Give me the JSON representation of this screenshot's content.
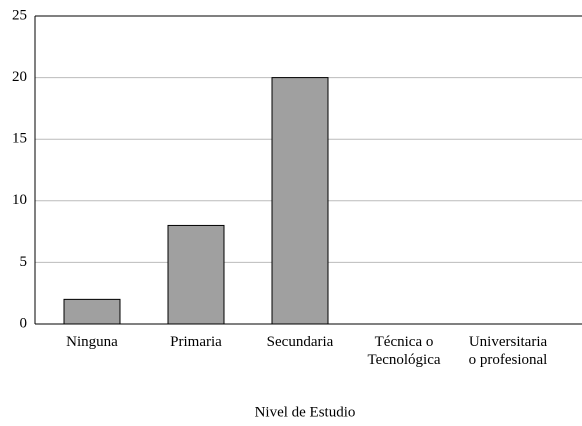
{
  "chart_data": {
    "type": "bar",
    "x_label": "Nivel de Estudio",
    "categories": [
      "Ninguna",
      "Primaria",
      "Secundaria",
      "Técnica o\nTecnológica",
      "Universitaria\no profesional"
    ],
    "values": [
      2,
      8,
      20,
      0,
      0
    ],
    "color": "#a0a0a0",
    "ylim": [
      0,
      25
    ],
    "yticks": [
      0,
      5,
      10,
      15,
      20,
      25
    ],
    "grid": true
  }
}
